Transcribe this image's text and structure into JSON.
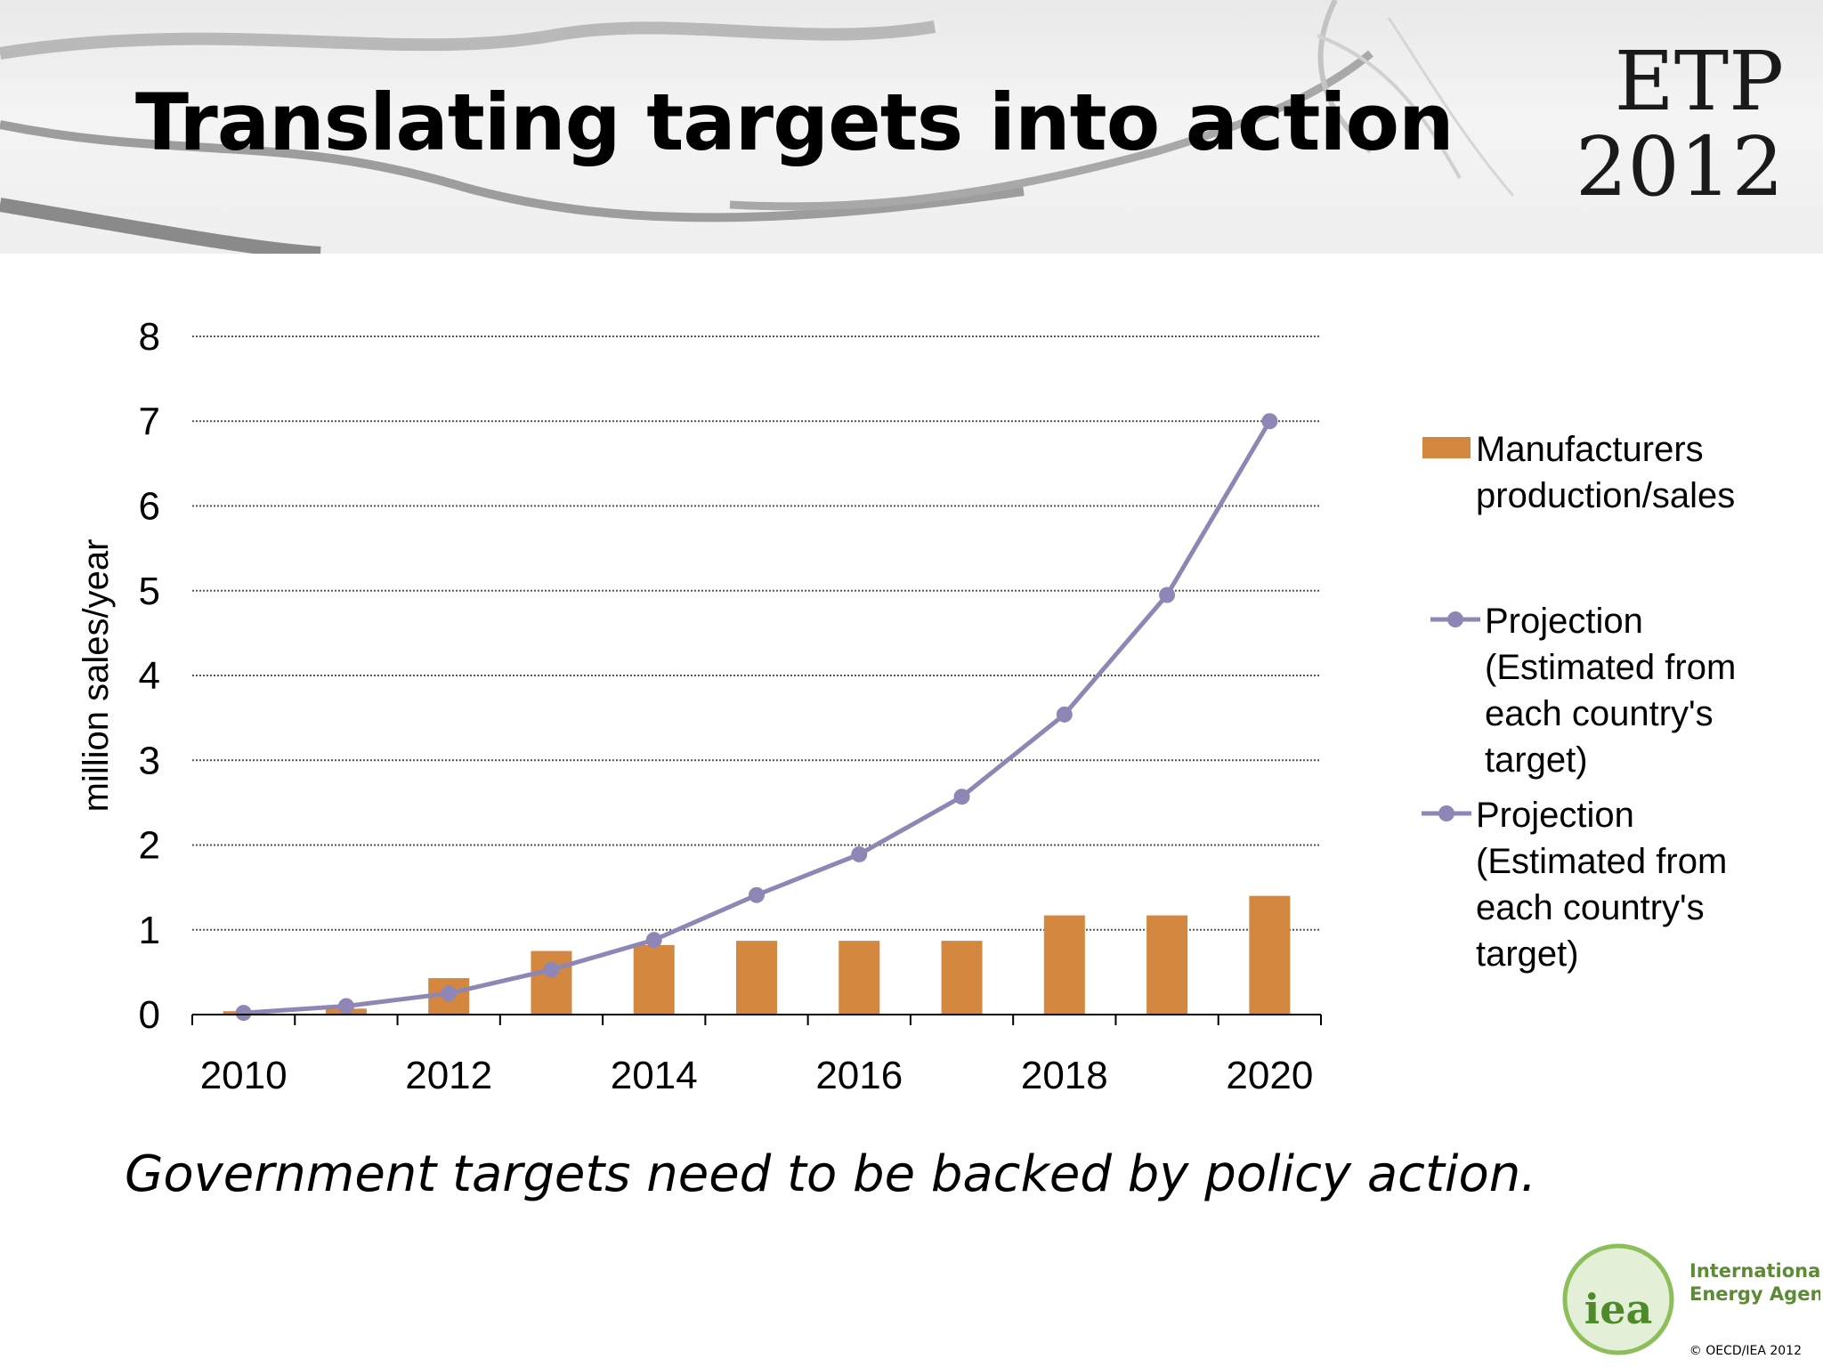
{
  "slide": {
    "title": "Translating targets into action",
    "badge_line1": "ETP",
    "badge_line2": "2012",
    "caption": "Government targets need to be backed by policy action.",
    "logo": {
      "mark_text": "iea",
      "name_line1": "International",
      "name_line2": "Energy Agency"
    },
    "copyright": "© OECD/IEA 2012"
  },
  "chart_data": {
    "type": "bar",
    "x": [
      2010,
      2011,
      2012,
      2013,
      2014,
      2015,
      2016,
      2017,
      2018,
      2019,
      2020
    ],
    "x_tick_labels": [
      "2010",
      "2012",
      "2014",
      "2016",
      "2018",
      "2020"
    ],
    "ylabel": "million sales/year",
    "ylim": [
      0,
      8
    ],
    "y_ticks": [
      0,
      1,
      2,
      3,
      4,
      5,
      6,
      7,
      8
    ],
    "grid": "horizontal dotted",
    "legend_position": "right",
    "series": [
      {
        "name": "Manufacturers production/sales",
        "type": "bar",
        "color": "#d4883f",
        "values": [
          0.04,
          0.07,
          0.43,
          0.75,
          0.82,
          0.87,
          0.87,
          0.87,
          1.17,
          1.17,
          1.4
        ]
      },
      {
        "name": "Projection (Estimated from each country's target)",
        "type": "line",
        "color": "#8e86b4",
        "values": [
          0.02,
          0.1,
          0.25,
          0.53,
          0.88,
          1.41,
          1.89,
          2.57,
          3.54,
          4.95,
          7.0
        ]
      }
    ],
    "legend": [
      {
        "type": "bar",
        "lines": [
          "Manufacturers",
          "production/sales"
        ]
      },
      {
        "type": "line",
        "lines": [
          "Projection",
          "(Estimated from",
          "each country's",
          "target)"
        ]
      },
      {
        "type": "line",
        "lines": [
          "Projection",
          "(Estimated from",
          "each country's",
          "target)"
        ]
      }
    ]
  }
}
